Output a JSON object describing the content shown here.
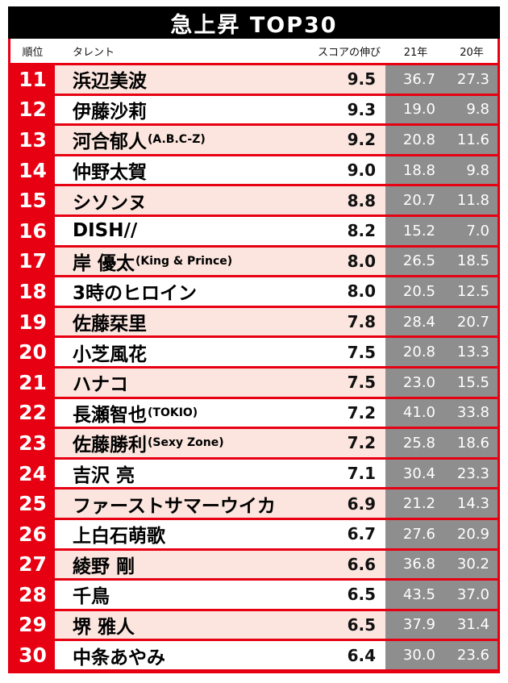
{
  "title": "急上昇 TOP30",
  "colors": {
    "accent_red": "#e60012",
    "row_pink": "#fbe5de",
    "value_gray": "#8e8e8e",
    "title_black": "#000000"
  },
  "chart_data": {
    "type": "table",
    "title": "急上昇 TOP30",
    "columns": [
      "順位",
      "タレント",
      "スコアの伸び",
      "21年",
      "20年"
    ],
    "rows": [
      {
        "rank": "11",
        "name": "浜辺美波",
        "suffix": "",
        "score": "9.5",
        "y2021": "36.7",
        "y2020": "27.3"
      },
      {
        "rank": "12",
        "name": "伊藤沙莉",
        "suffix": "",
        "score": "9.3",
        "y2021": "19.0",
        "y2020": "9.8"
      },
      {
        "rank": "13",
        "name": "河合郁人",
        "suffix": "(A.B.C-Z)",
        "score": "9.2",
        "y2021": "20.8",
        "y2020": "11.6"
      },
      {
        "rank": "14",
        "name": "仲野太賀",
        "suffix": "",
        "score": "9.0",
        "y2021": "18.8",
        "y2020": "9.8"
      },
      {
        "rank": "15",
        "name": "シソンヌ",
        "suffix": "",
        "score": "8.8",
        "y2021": "20.7",
        "y2020": "11.8"
      },
      {
        "rank": "16",
        "name": "DISH//",
        "suffix": "",
        "score": "8.2",
        "y2021": "15.2",
        "y2020": "7.0"
      },
      {
        "rank": "17",
        "name": "岸 優太",
        "suffix": "(King & Prince)",
        "score": "8.0",
        "y2021": "26.5",
        "y2020": "18.5"
      },
      {
        "rank": "18",
        "name": "3時のヒロイン",
        "suffix": "",
        "score": "8.0",
        "y2021": "20.5",
        "y2020": "12.5"
      },
      {
        "rank": "19",
        "name": "佐藤栞里",
        "suffix": "",
        "score": "7.8",
        "y2021": "28.4",
        "y2020": "20.7"
      },
      {
        "rank": "20",
        "name": "小芝風花",
        "suffix": "",
        "score": "7.5",
        "y2021": "20.8",
        "y2020": "13.3"
      },
      {
        "rank": "21",
        "name": "ハナコ",
        "suffix": "",
        "score": "7.5",
        "y2021": "23.0",
        "y2020": "15.5"
      },
      {
        "rank": "22",
        "name": "長瀬智也",
        "suffix": "(TOKIO)",
        "score": "7.2",
        "y2021": "41.0",
        "y2020": "33.8"
      },
      {
        "rank": "23",
        "name": "佐藤勝利",
        "suffix": "(Sexy Zone)",
        "score": "7.2",
        "y2021": "25.8",
        "y2020": "18.6"
      },
      {
        "rank": "24",
        "name": "吉沢 亮",
        "suffix": "",
        "score": "7.1",
        "y2021": "30.4",
        "y2020": "23.3"
      },
      {
        "rank": "25",
        "name": "ファーストサマーウイカ",
        "suffix": "",
        "score": "6.9",
        "y2021": "21.2",
        "y2020": "14.3"
      },
      {
        "rank": "26",
        "name": "上白石萌歌",
        "suffix": "",
        "score": "6.7",
        "y2021": "27.6",
        "y2020": "20.9"
      },
      {
        "rank": "27",
        "name": "綾野 剛",
        "suffix": "",
        "score": "6.6",
        "y2021": "36.8",
        "y2020": "30.2"
      },
      {
        "rank": "28",
        "name": "千鳥",
        "suffix": "",
        "score": "6.5",
        "y2021": "43.5",
        "y2020": "37.0"
      },
      {
        "rank": "29",
        "name": "堺 雅人",
        "suffix": "",
        "score": "6.5",
        "y2021": "37.9",
        "y2020": "31.4"
      },
      {
        "rank": "30",
        "name": "中条あやみ",
        "suffix": "",
        "score": "6.4",
        "y2021": "30.0",
        "y2020": "23.6"
      }
    ]
  }
}
